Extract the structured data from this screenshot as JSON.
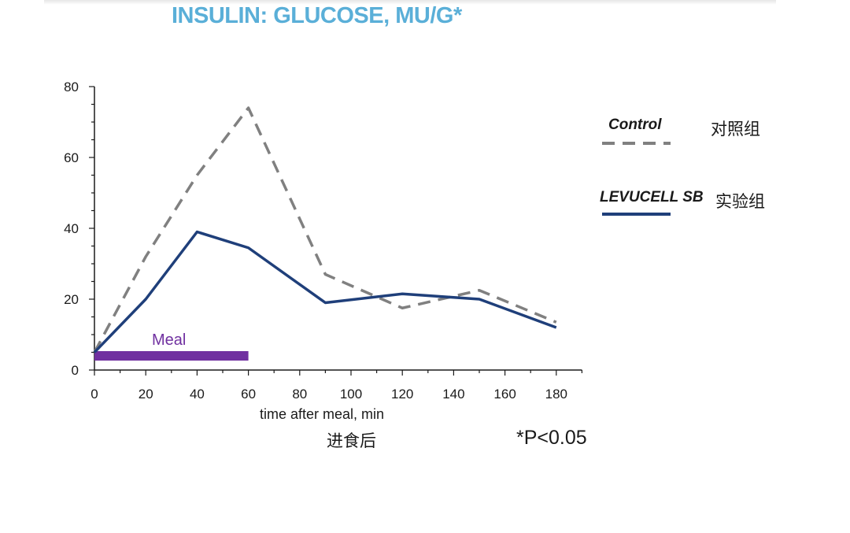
{
  "title": "INSULIN: GLUCOSE, MU/G*",
  "colors": {
    "title": "#5aafd8",
    "control": "#808080",
    "levucell": "#1f3f7a",
    "meal_bar": "#7030a0",
    "axis": "#1a1a1a"
  },
  "legend": {
    "control_label": "Control",
    "control_cn": "对照组",
    "levucell_label": "LEVUCELL SB",
    "levucell_cn": "实验组"
  },
  "annotations": {
    "meal": "Meal",
    "x_label_cn": "进食后",
    "significance": "*P<0.05"
  },
  "chart_data": {
    "type": "line",
    "title": "INSULIN: GLUCOSE, MU/G*",
    "xlabel": "time after meal, min",
    "ylabel": "",
    "xlim": [
      0,
      190
    ],
    "ylim": [
      0,
      80
    ],
    "x_ticks": [
      0,
      20,
      40,
      60,
      80,
      100,
      120,
      140,
      160,
      180
    ],
    "y_ticks": [
      0,
      20,
      40,
      60,
      80
    ],
    "series": [
      {
        "name": "Control",
        "style": "dashed",
        "x": [
          0,
          20,
          40,
          60,
          90,
          120,
          150,
          180
        ],
        "values": [
          5,
          32,
          55,
          74,
          27,
          17.5,
          22.5,
          13.5
        ]
      },
      {
        "name": "LEVUCELL SB",
        "style": "solid",
        "x": [
          0,
          20,
          40,
          60,
          90,
          120,
          150,
          180
        ],
        "values": [
          5,
          20,
          39,
          34.5,
          19,
          21.5,
          20,
          12
        ]
      }
    ],
    "meal_period": {
      "start": 0,
      "end": 60
    }
  }
}
